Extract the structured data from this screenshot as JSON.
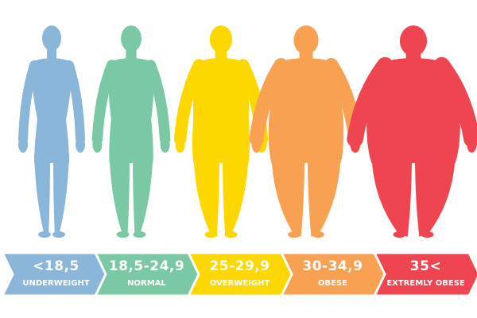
{
  "categories": [
    {
      "range": "<18,5",
      "label": "UNDERWEIGHT",
      "color": "#8ab6da"
    },
    {
      "range": "18,5-24,9",
      "label": "NORMAL",
      "color": "#7bc8a4"
    },
    {
      "range": "25-29,9",
      "label": "OVERWEIGHT",
      "color": "#fdd800"
    },
    {
      "range": "30-34,9",
      "label": "OBESE",
      "color": "#f9a152"
    },
    {
      "range": "35<",
      "label": "EXTREMLY OBESE",
      "color": "#ee4550"
    }
  ]
}
